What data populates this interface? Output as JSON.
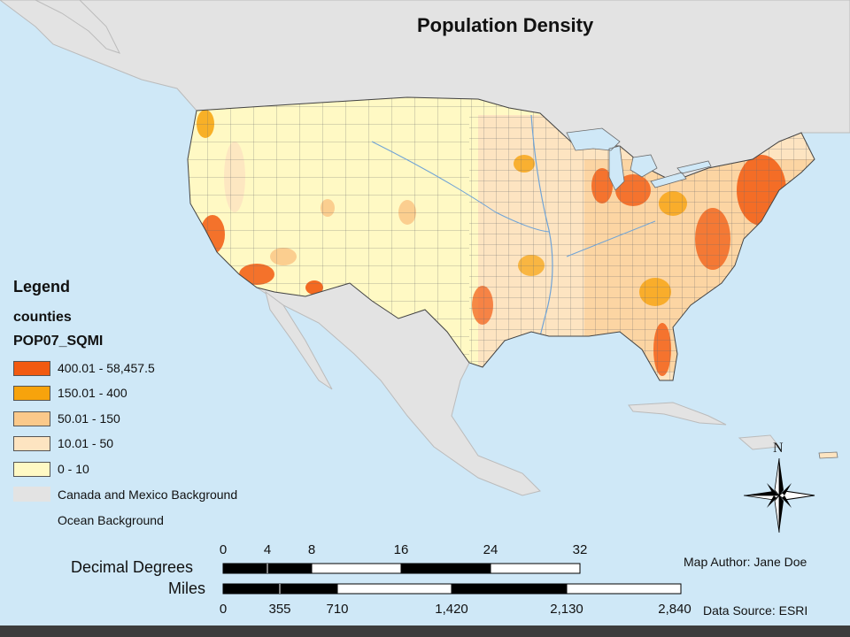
{
  "title": "Population Density",
  "legend": {
    "title": "Legend",
    "layer": "counties",
    "field": "POP07_SQMI",
    "classes": [
      {
        "label": "400.01 - 58,457.5",
        "color": "#f25a10"
      },
      {
        "label": "150.01 - 400",
        "color": "#f7a30c"
      },
      {
        "label": "50.01 - 150",
        "color": "#fbc98a"
      },
      {
        "label": "10.01 - 50",
        "color": "#fde4c1"
      },
      {
        "label": "0 - 10",
        "color": "#fff9c4"
      }
    ],
    "backgrounds": [
      {
        "label": "Canada and Mexico Background",
        "color": "#e3e3e3"
      },
      {
        "label": "Ocean Background",
        "color": "#cfe8f7"
      }
    ]
  },
  "scale_bars": {
    "decimal_degrees": {
      "label": "Decimal Degrees",
      "ticks": [
        "0",
        "4",
        "8",
        "16",
        "24",
        "32"
      ]
    },
    "miles": {
      "label": "Miles",
      "ticks": [
        "0",
        "355",
        "710",
        "1,420",
        "2,130",
        "2,840"
      ]
    }
  },
  "north_arrow": {
    "label": "N"
  },
  "credits": {
    "author": "Map Author: Jane Doe",
    "source": "Data Source: ESRI"
  }
}
